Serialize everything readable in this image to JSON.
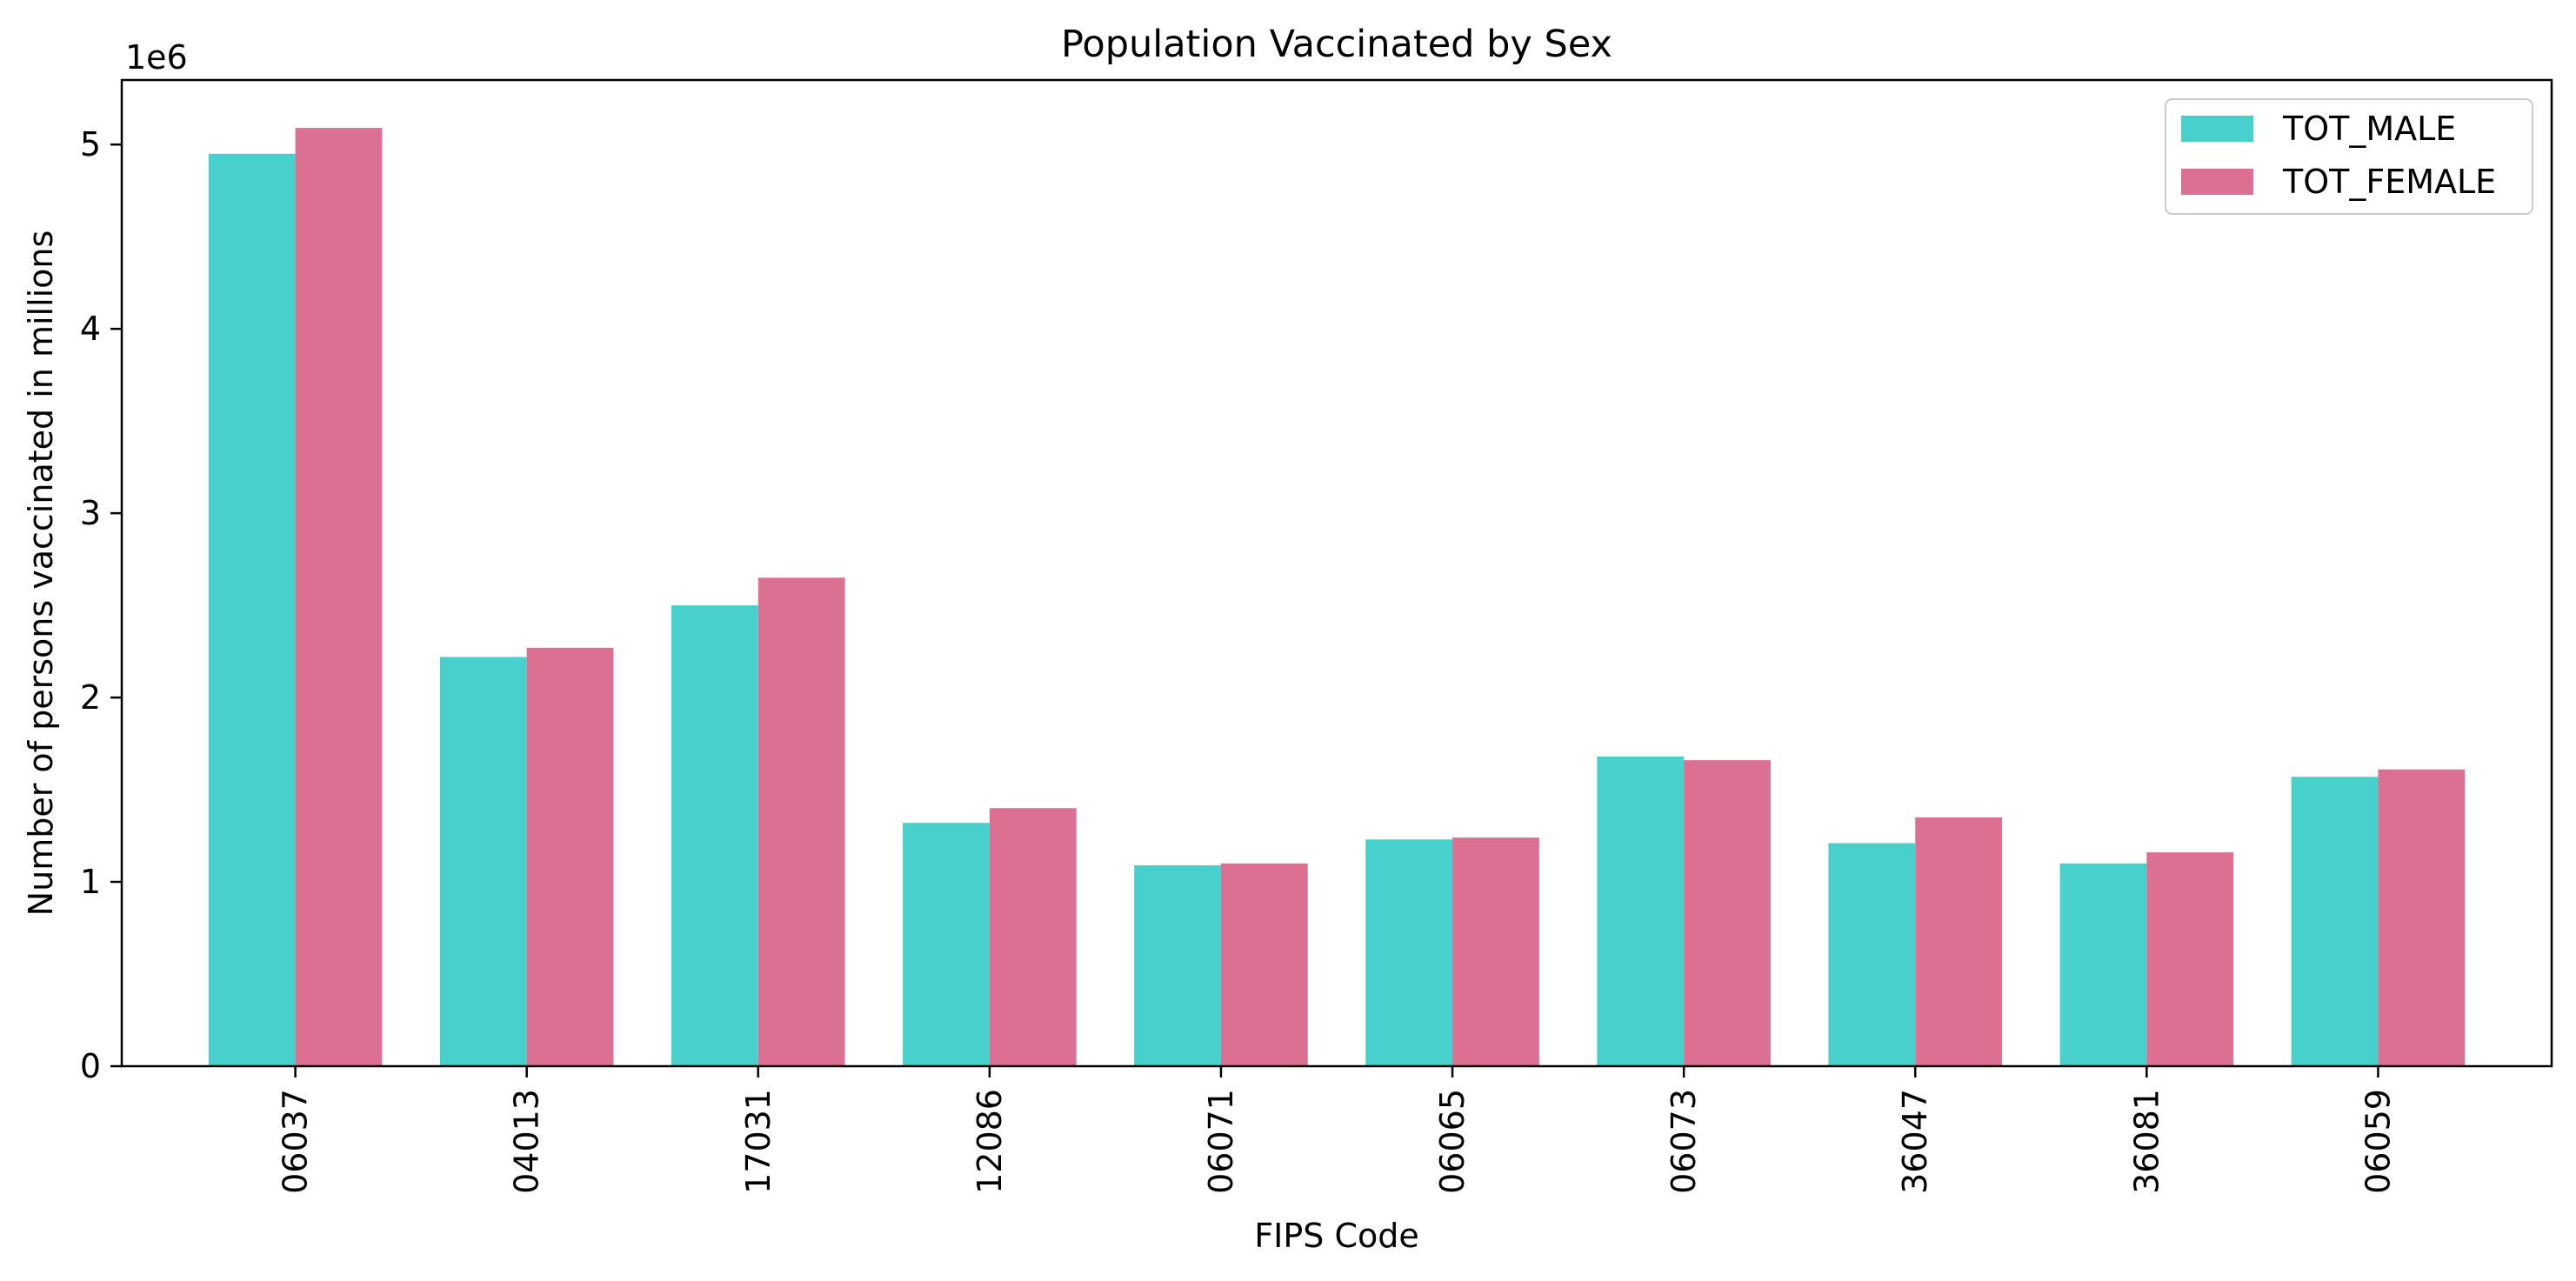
{
  "chart_data": {
    "type": "bar",
    "title": "Population Vaccinated by Sex",
    "xlabel": "FIPS Code",
    "ylabel": "Number of persons vaccinated in millions",
    "y_offset_label": "1e6",
    "y_scale": 1000000,
    "ylim": [
      0,
      5350000
    ],
    "yticks": [
      0,
      1,
      2,
      3,
      4,
      5
    ],
    "categories": [
      "06037",
      "04013",
      "17031",
      "12086",
      "06071",
      "06065",
      "06073",
      "36047",
      "36081",
      "06059"
    ],
    "series": [
      {
        "name": "TOT_MALE",
        "color": "#48D1CC",
        "values": [
          4950000,
          2220000,
          2500000,
          1320000,
          1090000,
          1230000,
          1680000,
          1210000,
          1100000,
          1570000
        ]
      },
      {
        "name": "TOT_FEMALE",
        "color": "#DB7093",
        "values": [
          5090000,
          2270000,
          2650000,
          1400000,
          1100000,
          1240000,
          1660000,
          1350000,
          1160000,
          1610000
        ]
      }
    ],
    "legend_position": "top-right",
    "grid": false
  }
}
